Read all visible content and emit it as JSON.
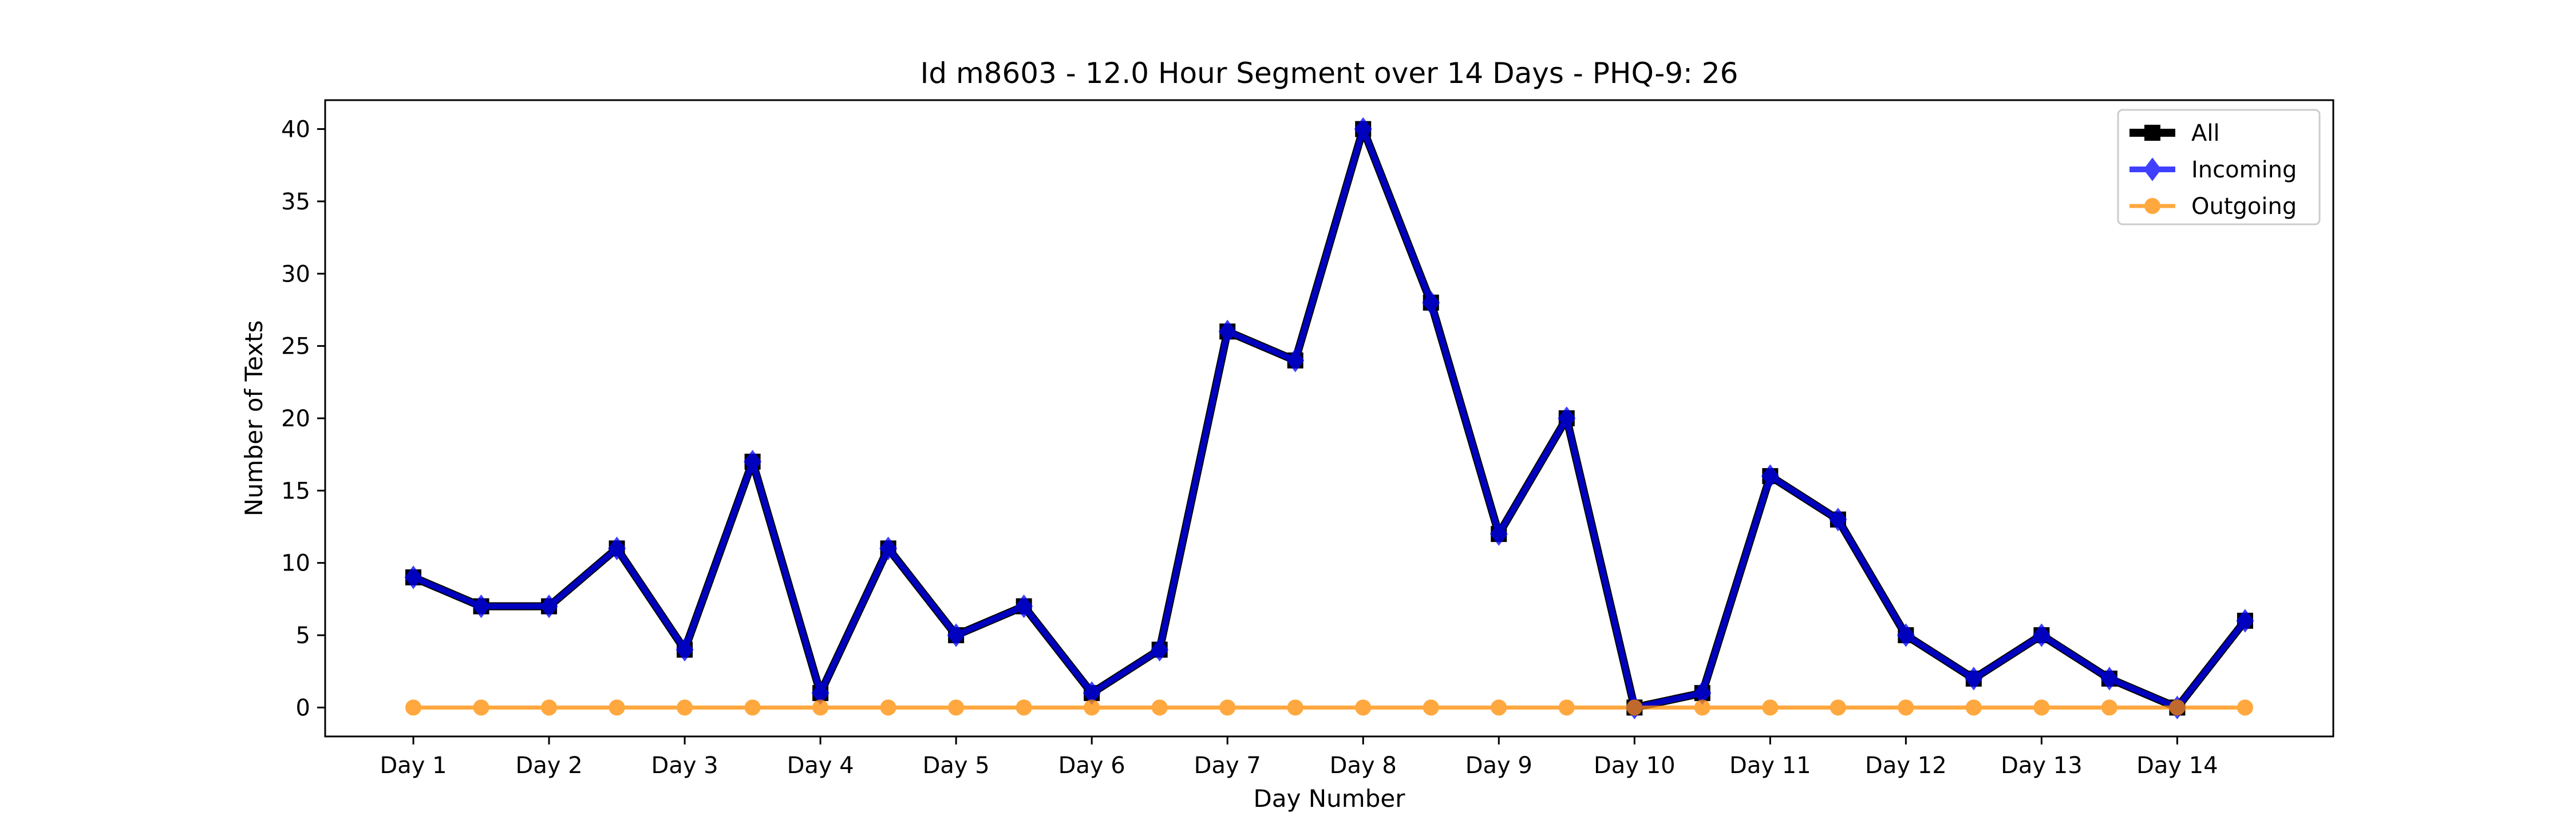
{
  "chart_data": {
    "type": "line",
    "title": "Id m8603 - 12.0 Hour Segment over 14 Days - PHQ-9: 26",
    "xlabel": "Day Number",
    "ylabel": "Number of Texts",
    "x_tick_labels": [
      "Day 1",
      "Day 2",
      "Day 3",
      "Day 4",
      "Day 5",
      "Day 6",
      "Day 7",
      "Day 8",
      "Day 9",
      "Day 10",
      "Day 11",
      "Day 12",
      "Day 13",
      "Day 14"
    ],
    "y_ticks": [
      0,
      5,
      10,
      15,
      20,
      25,
      30,
      35,
      40
    ],
    "x_range": [
      0.35,
      15.15
    ],
    "ylim": [
      -2,
      42
    ],
    "grid": false,
    "legend_position": "top-right",
    "x": [
      1,
      1.5,
      2,
      2.5,
      3,
      3.5,
      4,
      4.5,
      5,
      5.5,
      6,
      6.5,
      7,
      7.5,
      8,
      8.5,
      9,
      9.5,
      10,
      10.5,
      11,
      11.5,
      12,
      12.5,
      13,
      13.5,
      14,
      14.5
    ],
    "series": [
      {
        "name": "All",
        "color": "#000000",
        "marker": "square",
        "values": [
          9,
          7,
          7,
          11,
          4,
          17,
          1,
          11,
          5,
          7,
          1,
          4,
          26,
          24,
          40,
          28,
          12,
          20,
          0,
          1,
          16,
          13,
          5,
          2,
          5,
          2,
          0,
          6
        ]
      },
      {
        "name": "Incoming",
        "color": "#0000ff",
        "marker": "diamond",
        "values": [
          9,
          7,
          7,
          11,
          4,
          17,
          1,
          11,
          5,
          7,
          1,
          4,
          26,
          24,
          40,
          28,
          12,
          20,
          0,
          1,
          16,
          13,
          5,
          2,
          5,
          2,
          0,
          6
        ]
      },
      {
        "name": "Outgoing",
        "color": "#ff8c00",
        "marker": "circle",
        "values": [
          0,
          0,
          0,
          0,
          0,
          0,
          0,
          0,
          0,
          0,
          0,
          0,
          0,
          0,
          0,
          0,
          0,
          0,
          0,
          0,
          0,
          0,
          0,
          0,
          0,
          0,
          0,
          0
        ]
      }
    ]
  }
}
